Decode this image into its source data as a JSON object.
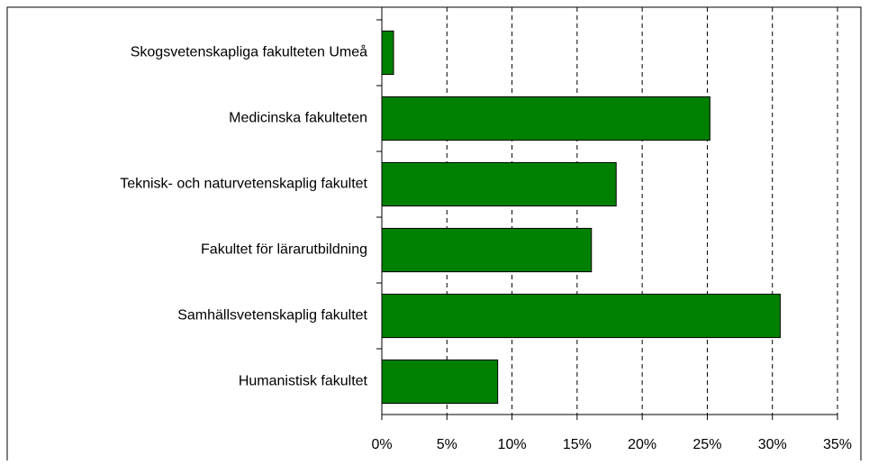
{
  "chart_data": {
    "type": "barh",
    "categories": [
      "Skogsvetenskapliga fakulteten Umeå",
      "Medicinska fakulteten",
      "Teknisk- och naturvetenskaplig fakultet",
      "Fakultet för lärarutbildning",
      "Samhällsvetenskaplig fakultet",
      "Humanistisk fakultet"
    ],
    "values": [
      0.9,
      25.2,
      18.0,
      16.1,
      30.6,
      8.9
    ],
    "color": "#008000",
    "xlim": [
      0,
      35
    ],
    "xticks": [
      {
        "value": 0,
        "label": "0%"
      },
      {
        "value": 5,
        "label": "5%"
      },
      {
        "value": 10,
        "label": "10%"
      },
      {
        "value": 15,
        "label": "15%"
      },
      {
        "value": 20,
        "label": "20%"
      },
      {
        "value": 25,
        "label": "25%"
      },
      {
        "value": 30,
        "label": "30%"
      },
      {
        "value": 35,
        "label": "35%"
      }
    ],
    "grid": true
  }
}
